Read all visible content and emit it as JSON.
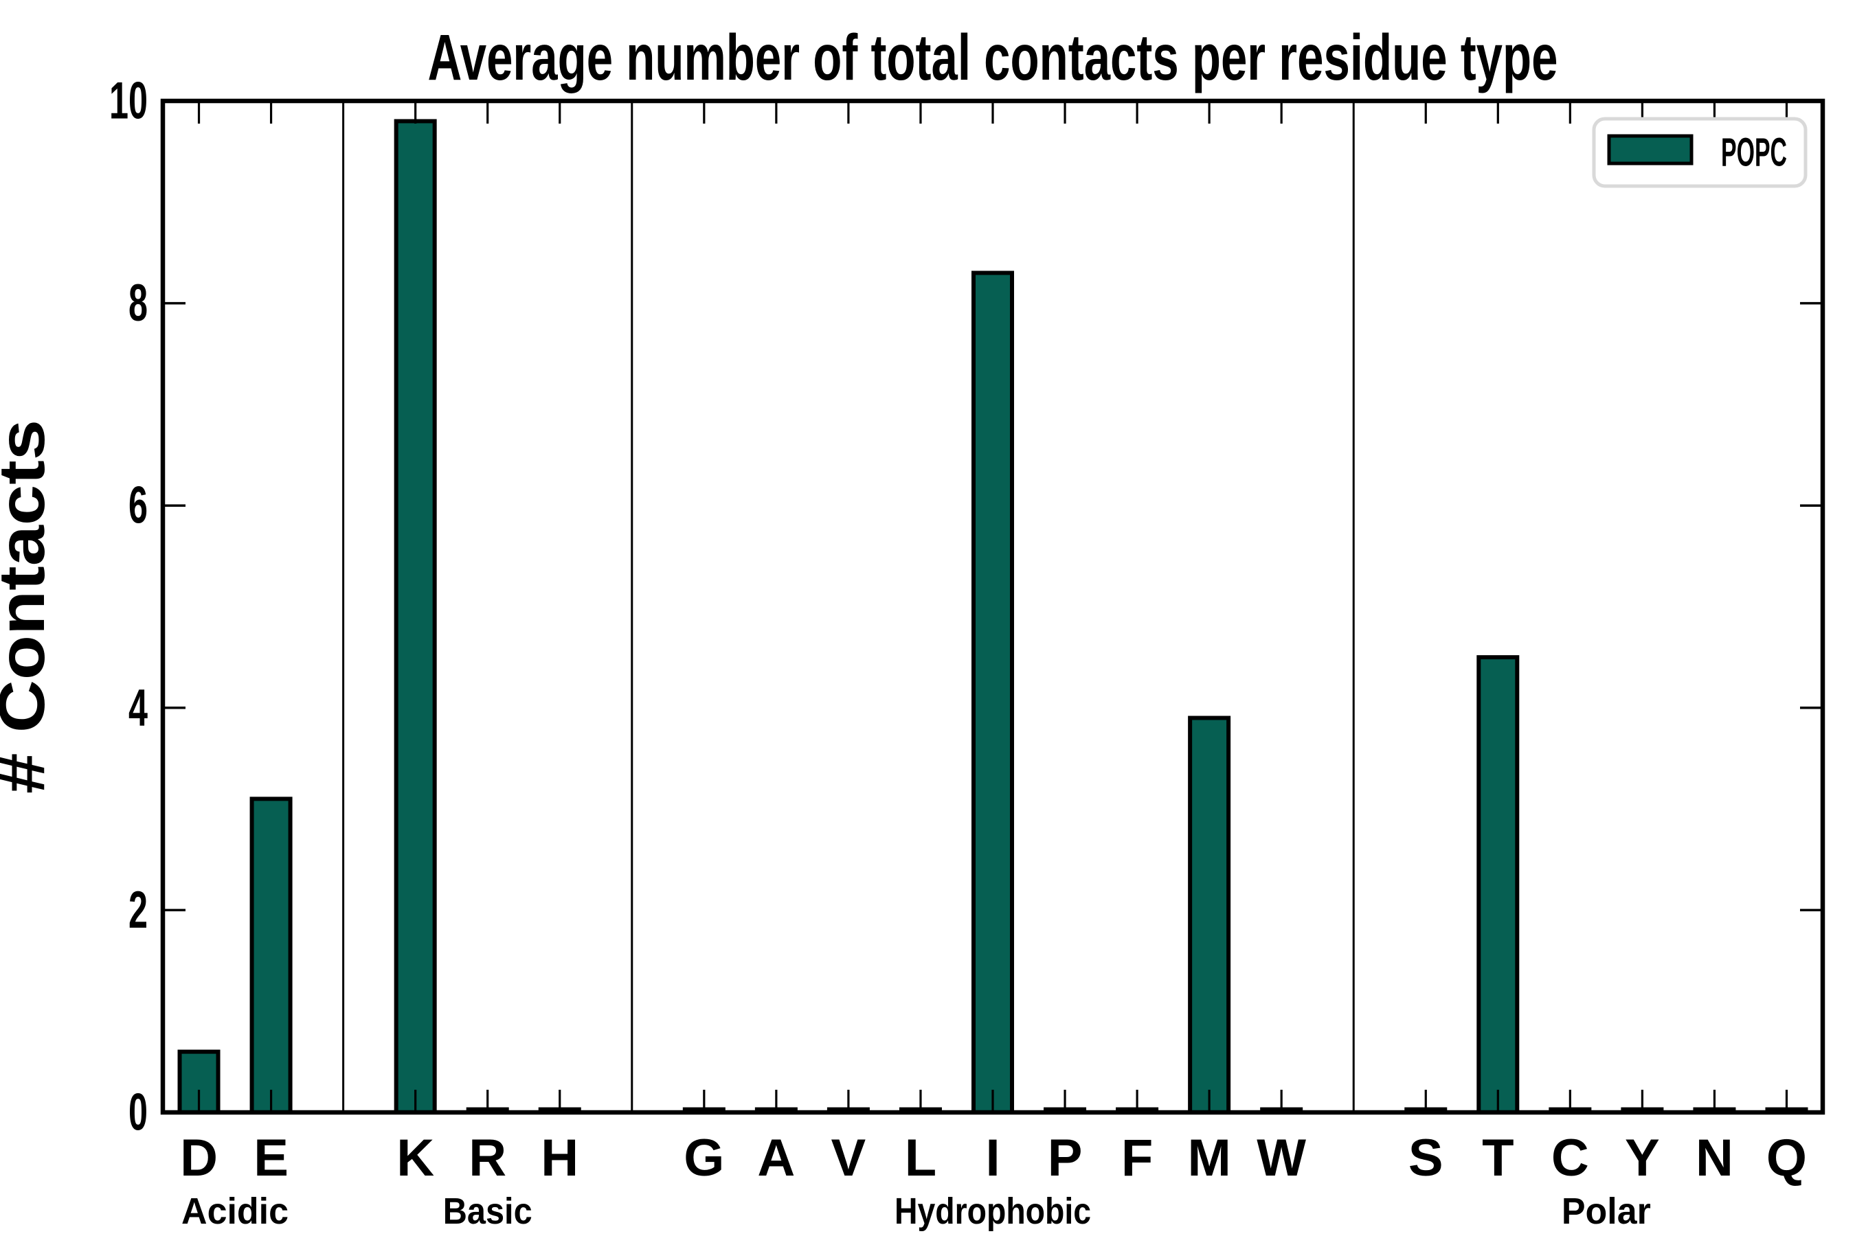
{
  "chart_data": {
    "type": "bar",
    "title": "Average number of total contacts per residue type",
    "ylabel": "# Contacts",
    "xlabel": "",
    "ylim": [
      0,
      10
    ],
    "yticks": [
      0,
      2,
      4,
      6,
      8,
      10
    ],
    "grid": false,
    "legend": {
      "label": "POPC",
      "position": "upper right"
    },
    "bar_color": "#065f52",
    "bar_edge_color": "#000000",
    "axis_color": "#000000",
    "legend_border_color": "#d9d9d9",
    "groups": [
      {
        "name": "Acidic",
        "categories": [
          "D",
          "E"
        ],
        "values": [
          0.6,
          3.1
        ]
      },
      {
        "name": "Basic",
        "categories": [
          "K",
          "R",
          "H"
        ],
        "values": [
          9.8,
          0.03,
          0.03
        ]
      },
      {
        "name": "Hydrophobic",
        "categories": [
          "G",
          "A",
          "V",
          "L",
          "I",
          "P",
          "F",
          "M",
          "W"
        ],
        "values": [
          0.03,
          0.03,
          0.03,
          0.03,
          8.3,
          0.03,
          0.03,
          3.9,
          0.03
        ]
      },
      {
        "name": "Polar",
        "categories": [
          "S",
          "T",
          "C",
          "Y",
          "N",
          "Q"
        ],
        "values": [
          0.03,
          4.5,
          0.03,
          0.03,
          0.03,
          0.03
        ]
      }
    ]
  }
}
